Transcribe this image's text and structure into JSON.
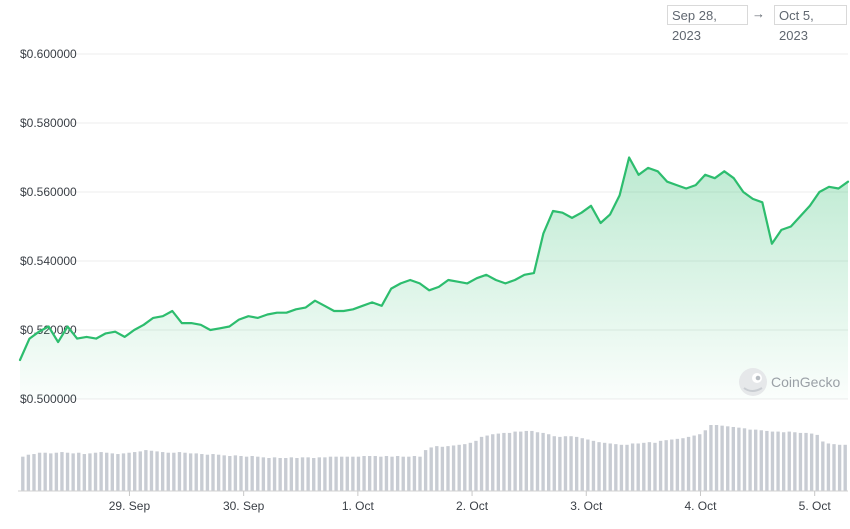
{
  "date_range": {
    "start": "Sep 28, 2023",
    "separator": "→",
    "end": "Oct 5, 2023"
  },
  "watermark": "CoinGecko",
  "colors": {
    "line": "#2dbd6e",
    "fill": "#2dbd6e",
    "grid": "#ececec",
    "volume": "#c8ccd3"
  },
  "chart_data": {
    "type": "area",
    "title": "",
    "xlabel": "",
    "ylabel": "",
    "x_tick_labels": [
      "29. Sep",
      "30. Sep",
      "1. Oct",
      "2. Oct",
      "3. Oct",
      "4. Oct",
      "5. Oct"
    ],
    "y_tick_labels": [
      "$0.500000",
      "$0.520000",
      "$0.540000",
      "$0.560000",
      "$0.580000",
      "$0.600000"
    ],
    "ylim": [
      0.5,
      0.6
    ],
    "xlim": [
      "2023-09-28T13:00",
      "2023-10-05T19:00"
    ],
    "grid": true,
    "series": [
      {
        "values": [
          [
            "2023-09-28T13:00",
            0.5113
          ],
          [
            "2023-09-28T15:00",
            0.5175
          ],
          [
            "2023-09-28T17:00",
            0.5195
          ],
          [
            "2023-09-28T19:00",
            0.521
          ],
          [
            "2023-09-28T21:00",
            0.5165
          ],
          [
            "2023-09-28T23:00",
            0.521
          ],
          [
            "2023-09-29T01:00",
            0.5175
          ],
          [
            "2023-09-29T03:00",
            0.518
          ],
          [
            "2023-09-29T05:00",
            0.5175
          ],
          [
            "2023-09-29T07:00",
            0.519
          ],
          [
            "2023-09-29T09:00",
            0.5195
          ],
          [
            "2023-09-29T11:00",
            0.518
          ],
          [
            "2023-09-29T13:00",
            0.52
          ],
          [
            "2023-09-29T15:00",
            0.5215
          ],
          [
            "2023-09-29T17:00",
            0.5235
          ],
          [
            "2023-09-29T19:00",
            0.524
          ],
          [
            "2023-09-29T21:00",
            0.5255
          ],
          [
            "2023-09-29T23:00",
            0.522
          ],
          [
            "2023-09-30T01:00",
            0.522
          ],
          [
            "2023-09-30T03:00",
            0.5215
          ],
          [
            "2023-09-30T05:00",
            0.52
          ],
          [
            "2023-09-30T07:00",
            0.5205
          ],
          [
            "2023-09-30T09:00",
            0.521
          ],
          [
            "2023-09-30T11:00",
            0.523
          ],
          [
            "2023-09-30T13:00",
            0.524
          ],
          [
            "2023-09-30T15:00",
            0.5235
          ],
          [
            "2023-09-30T17:00",
            0.5245
          ],
          [
            "2023-09-30T19:00",
            0.525
          ],
          [
            "2023-09-30T21:00",
            0.525
          ],
          [
            "2023-09-30T23:00",
            0.526
          ],
          [
            "2023-10-01T01:00",
            0.5265
          ],
          [
            "2023-10-01T03:00",
            0.5285
          ],
          [
            "2023-10-01T05:00",
            0.527
          ],
          [
            "2023-10-01T07:00",
            0.5255
          ],
          [
            "2023-10-01T09:00",
            0.5255
          ],
          [
            "2023-10-01T11:00",
            0.526
          ],
          [
            "2023-10-01T13:00",
            0.527
          ],
          [
            "2023-10-01T15:00",
            0.528
          ],
          [
            "2023-10-01T17:00",
            0.527
          ],
          [
            "2023-10-01T19:00",
            0.532
          ],
          [
            "2023-10-01T21:00",
            0.5335
          ],
          [
            "2023-10-01T23:00",
            0.5345
          ],
          [
            "2023-10-02T01:00",
            0.5335
          ],
          [
            "2023-10-02T03:00",
            0.5315
          ],
          [
            "2023-10-02T05:00",
            0.5325
          ],
          [
            "2023-10-02T07:00",
            0.5345
          ],
          [
            "2023-10-02T09:00",
            0.534
          ],
          [
            "2023-10-02T11:00",
            0.5335
          ],
          [
            "2023-10-02T13:00",
            0.535
          ],
          [
            "2023-10-02T15:00",
            0.536
          ],
          [
            "2023-10-02T17:00",
            0.5345
          ],
          [
            "2023-10-02T19:00",
            0.5335
          ],
          [
            "2023-10-02T21:00",
            0.5345
          ],
          [
            "2023-10-02T23:00",
            0.536
          ],
          [
            "2023-10-03T01:00",
            0.5365
          ],
          [
            "2023-10-03T03:00",
            0.548
          ],
          [
            "2023-10-03T05:00",
            0.5545
          ],
          [
            "2023-10-03T07:00",
            0.554
          ],
          [
            "2023-10-03T09:00",
            0.5525
          ],
          [
            "2023-10-03T11:00",
            0.554
          ],
          [
            "2023-10-03T13:00",
            0.556
          ],
          [
            "2023-10-03T15:00",
            0.551
          ],
          [
            "2023-10-03T17:00",
            0.5535
          ],
          [
            "2023-10-03T19:00",
            0.559
          ],
          [
            "2023-10-03T21:00",
            0.57
          ],
          [
            "2023-10-03T23:00",
            0.565
          ],
          [
            "2023-10-04T01:00",
            0.567
          ],
          [
            "2023-10-04T03:00",
            0.566
          ],
          [
            "2023-10-04T05:00",
            0.563
          ],
          [
            "2023-10-04T07:00",
            0.562
          ],
          [
            "2023-10-04T09:00",
            0.561
          ],
          [
            "2023-10-04T11:00",
            0.562
          ],
          [
            "2023-10-04T13:00",
            0.565
          ],
          [
            "2023-10-04T15:00",
            0.564
          ],
          [
            "2023-10-04T17:00",
            0.566
          ],
          [
            "2023-10-04T19:00",
            0.564
          ],
          [
            "2023-10-04T21:00",
            0.56
          ],
          [
            "2023-10-04T23:00",
            0.558
          ],
          [
            "2023-10-05T01:00",
            0.557
          ],
          [
            "2023-10-05T03:00",
            0.545
          ],
          [
            "2023-10-05T05:00",
            0.549
          ],
          [
            "2023-10-05T07:00",
            0.55
          ],
          [
            "2023-10-05T09:00",
            0.553
          ],
          [
            "2023-10-05T11:00",
            0.556
          ],
          [
            "2023-10-05T13:00",
            0.56
          ],
          [
            "2023-10-05T15:00",
            0.5615
          ],
          [
            "2023-10-05T17:00",
            0.561
          ],
          [
            "2023-10-05T19:00",
            0.563
          ]
        ]
      }
    ],
    "volume": {
      "relative_heights": [
        0.52,
        0.55,
        0.56,
        0.58,
        0.58,
        0.57,
        0.58,
        0.59,
        0.58,
        0.57,
        0.58,
        0.56,
        0.57,
        0.58,
        0.59,
        0.58,
        0.57,
        0.56,
        0.57,
        0.58,
        0.59,
        0.6,
        0.62,
        0.61,
        0.6,
        0.59,
        0.58,
        0.58,
        0.59,
        0.58,
        0.57,
        0.57,
        0.56,
        0.55,
        0.56,
        0.55,
        0.54,
        0.53,
        0.54,
        0.53,
        0.52,
        0.53,
        0.52,
        0.51,
        0.5,
        0.51,
        0.5,
        0.5,
        0.51,
        0.5,
        0.51,
        0.51,
        0.5,
        0.51,
        0.51,
        0.52,
        0.52,
        0.52,
        0.52,
        0.52,
        0.52,
        0.53,
        0.53,
        0.53,
        0.52,
        0.53,
        0.52,
        0.53,
        0.52,
        0.52,
        0.53,
        0.52,
        0.62,
        0.66,
        0.68,
        0.67,
        0.68,
        0.69,
        0.7,
        0.71,
        0.73,
        0.76,
        0.82,
        0.84,
        0.86,
        0.87,
        0.88,
        0.88,
        0.9,
        0.9,
        0.91,
        0.91,
        0.89,
        0.88,
        0.86,
        0.83,
        0.82,
        0.83,
        0.83,
        0.82,
        0.8,
        0.78,
        0.76,
        0.74,
        0.73,
        0.72,
        0.71,
        0.7,
        0.7,
        0.72,
        0.72,
        0.73,
        0.74,
        0.73,
        0.76,
        0.77,
        0.78,
        0.79,
        0.8,
        0.82,
        0.84,
        0.86,
        0.92,
        1.0,
        1.0,
        0.99,
        0.98,
        0.97,
        0.96,
        0.95,
        0.93,
        0.93,
        0.92,
        0.91,
        0.9,
        0.9,
        0.89,
        0.9,
        0.89,
        0.88,
        0.88,
        0.87,
        0.85,
        0.75,
        0.72,
        0.71,
        0.7,
        0.7
      ]
    }
  }
}
